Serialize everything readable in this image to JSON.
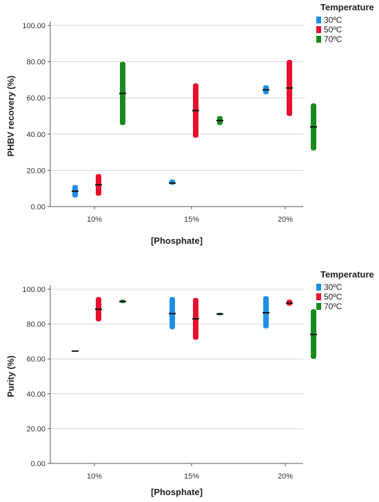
{
  "chart_data": [
    {
      "type": "range",
      "xlabel": "[Phosphate]",
      "ylabel": "PHBV recovery (%)",
      "ylim": [
        0,
        100
      ],
      "yticks": [
        "0.00",
        "20.00",
        "40.00",
        "60.00",
        "80.00",
        "100.00"
      ],
      "categories": [
        "10%",
        "15%",
        "20%"
      ],
      "legend": {
        "title": "Temperature",
        "placement": "top-right"
      },
      "grid": "horizontal",
      "series": [
        {
          "name": "30ºC",
          "color": "#1f8fe5",
          "ranges": [
            [
              5,
              12,
              8.5
            ],
            [
              12,
              15,
              13
            ],
            [
              62,
              67,
              64.5
            ]
          ]
        },
        {
          "name": "50ºC",
          "color": "#e8102f",
          "ranges": [
            [
              6,
              18,
              12
            ],
            [
              38,
              68,
              53
            ],
            [
              50,
              81,
              65.5
            ]
          ]
        },
        {
          "name": "70ºC",
          "color": "#1a8a1f",
          "ranges": [
            [
              45,
              80,
              62.5
            ],
            [
              45,
              50,
              47.5
            ],
            [
              31,
              57,
              44
            ]
          ]
        }
      ]
    },
    {
      "type": "range",
      "xlabel": "[Phosphate]",
      "ylabel": "Purity (%)",
      "ylim": [
        0,
        100
      ],
      "yticks": [
        "0.00",
        "20.00",
        "40.00",
        "60.00",
        "80.00",
        "100.00"
      ],
      "categories": [
        "10%",
        "15%",
        "20%"
      ],
      "legend": {
        "title": "Temperature",
        "placement": "top-right"
      },
      "grid": "horizontal",
      "series": [
        {
          "name": "30ºC",
          "color": "#1f8fe5",
          "ranges": [
            [
              64.5,
              64.5,
              64.5
            ],
            [
              77,
              95.5,
              86
            ],
            [
              77.5,
              96,
              86.5
            ]
          ]
        },
        {
          "name": "50ºC",
          "color": "#e8102f",
          "ranges": [
            [
              81.5,
              95.5,
              88.5
            ],
            [
              71,
              95,
              83
            ],
            [
              90.5,
              94,
              92
            ]
          ]
        },
        {
          "name": "70ºC",
          "color": "#1a8a1f",
          "ranges": [
            [
              92,
              94,
              93
            ],
            [
              85,
              86.5,
              85.8
            ],
            [
              60,
              88.5,
              74
            ]
          ]
        }
      ]
    }
  ]
}
